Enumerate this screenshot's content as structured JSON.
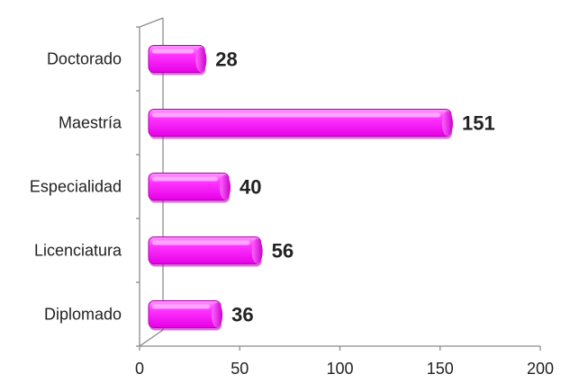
{
  "chart_data": {
    "type": "bar",
    "orientation": "horizontal",
    "categories": [
      "Doctorado",
      "Maestría",
      "Especialidad",
      "Licenciatura",
      "Diplomado"
    ],
    "values": [
      28,
      151,
      40,
      56,
      36
    ],
    "title": "",
    "xlabel": "",
    "ylabel": "",
    "xlim": [
      0,
      200
    ],
    "xticks": [
      "0",
      "50",
      "100",
      "150",
      "200"
    ],
    "grid": false,
    "legend": "none",
    "bar_color": "#ff33ff",
    "bar_edge_color": "#b300b3",
    "three_d": true
  }
}
